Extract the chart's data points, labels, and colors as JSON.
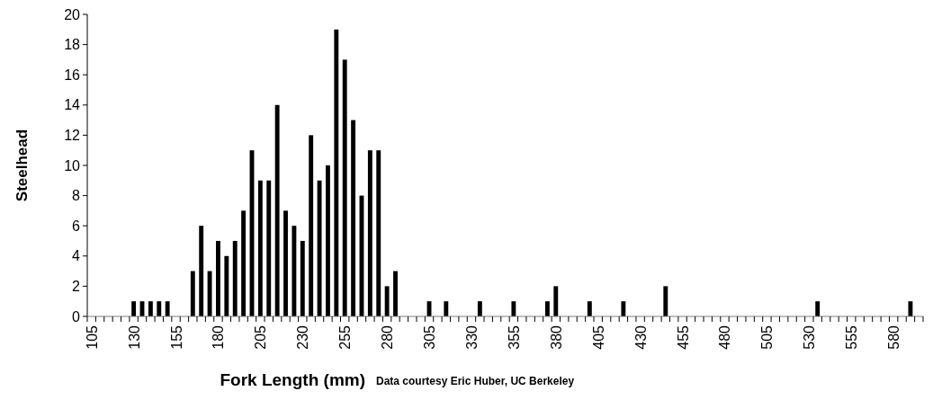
{
  "chart_data": {
    "type": "bar",
    "xlabel": "Fork Length (mm)",
    "ylabel": "Steelhead",
    "annotations": [
      "Data courtesy Eric Huber, UC Berkeley"
    ],
    "categories": [
      "105",
      null,
      null,
      null,
      null,
      "130",
      null,
      null,
      null,
      null,
      "155",
      null,
      null,
      null,
      null,
      "180",
      null,
      null,
      null,
      null,
      "205",
      null,
      null,
      null,
      null,
      "230",
      null,
      null,
      null,
      null,
      "255",
      null,
      null,
      null,
      null,
      "280",
      null,
      null,
      null,
      null,
      "305",
      null,
      null,
      null,
      null,
      "330",
      null,
      null,
      null,
      null,
      "355",
      null,
      null,
      null,
      null,
      "380",
      null,
      null,
      null,
      null,
      "405",
      null,
      null,
      null,
      null,
      "430",
      null,
      null,
      null,
      null,
      "455",
      null,
      null,
      null,
      null,
      "480",
      null,
      null,
      null,
      null,
      "505",
      null,
      null,
      null,
      null,
      "530",
      null,
      null,
      null,
      null,
      "555",
      null,
      null,
      null,
      null,
      "580",
      null,
      null,
      null
    ],
    "values": [
      0,
      0,
      0,
      0,
      0,
      1,
      1,
      1,
      1,
      1,
      0,
      0,
      3,
      6,
      3,
      5,
      4,
      5,
      7,
      11,
      9,
      9,
      14,
      7,
      6,
      5,
      12,
      9,
      10,
      19,
      17,
      13,
      8,
      11,
      11,
      2,
      3,
      0,
      0,
      0,
      1,
      0,
      1,
      0,
      0,
      0,
      1,
      0,
      0,
      0,
      1,
      0,
      0,
      0,
      1,
      2,
      0,
      0,
      0,
      1,
      0,
      0,
      0,
      1,
      0,
      0,
      0,
      0,
      2,
      0,
      0,
      0,
      0,
      0,
      0,
      0,
      0,
      0,
      0,
      0,
      0,
      0,
      0,
      0,
      0,
      0,
      1,
      0,
      0,
      0,
      0,
      0,
      0,
      0,
      0,
      0,
      0,
      1,
      0
    ],
    "color": "#000000",
    "ylim": [
      0,
      20
    ],
    "yticks": [
      0,
      2,
      4,
      6,
      8,
      10,
      12,
      14,
      16,
      18,
      20
    ],
    "grid": false
  }
}
